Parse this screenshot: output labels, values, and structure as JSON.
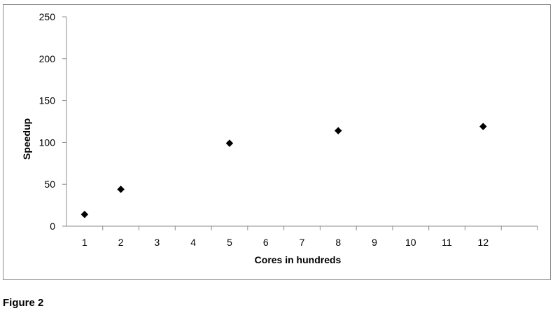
{
  "caption": "Figure 2",
  "chart_data": {
    "type": "scatter",
    "xlabel": "Cores in hundreds",
    "ylabel": "Speedup",
    "categories": [
      "1",
      "2",
      "3",
      "4",
      "5",
      "6",
      "7",
      "8",
      "9",
      "10",
      "11",
      "12"
    ],
    "yticks": [
      "0",
      "50",
      "100",
      "150",
      "200",
      "250"
    ],
    "ylim": [
      0,
      250
    ],
    "grid": false,
    "marker": "diamond",
    "marker_color": "#000000",
    "points": [
      {
        "x": "1",
        "y": 14
      },
      {
        "x": "2",
        "y": 44
      },
      {
        "x": "5",
        "y": 99
      },
      {
        "x": "8",
        "y": 114
      },
      {
        "x": "12",
        "y": 119
      }
    ]
  }
}
